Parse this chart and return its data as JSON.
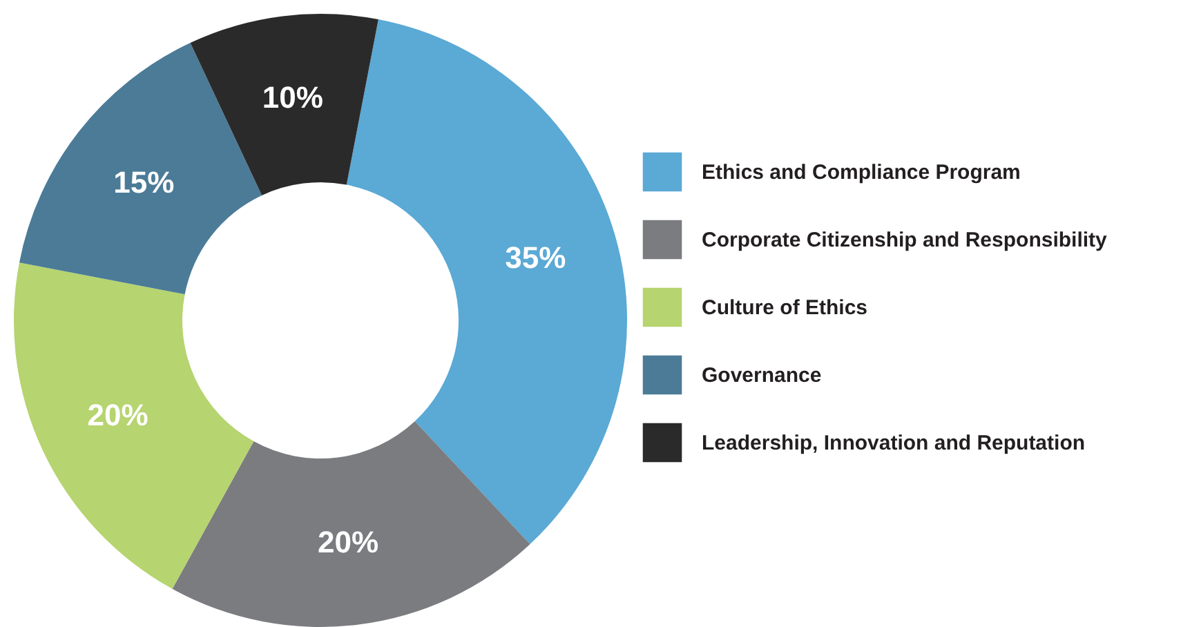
{
  "chart_data": {
    "type": "donut",
    "categories": [
      "Ethics and Compliance Program",
      "Corporate Citizenship and Responsibility",
      "Culture of Ethics",
      "Governance",
      "Leadership, Innovation and Reputation"
    ],
    "values": [
      35,
      20,
      20,
      15,
      10
    ],
    "value_labels": [
      "35%",
      "20%",
      "20%",
      "15%",
      "10%"
    ],
    "colors": [
      "#5ba9d5",
      "#7b7c7f",
      "#b6d46f",
      "#4b7b97",
      "#2b2a2b"
    ],
    "legend": "right"
  }
}
